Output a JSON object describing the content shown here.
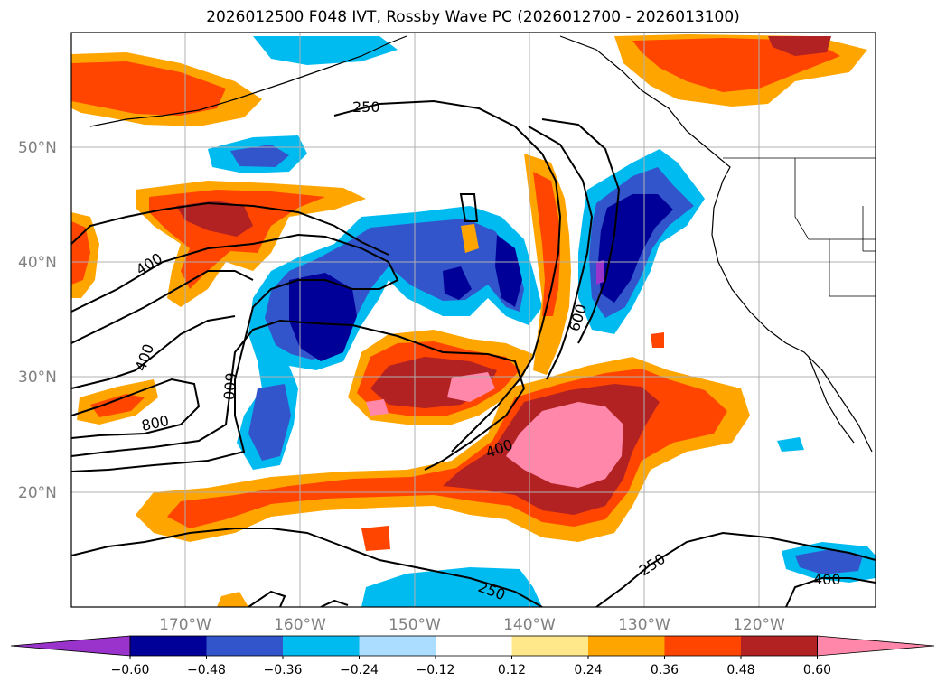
{
  "title": "2026012500 F048 IVT, Rossby Wave PC (2026012700 - 2026013100)",
  "map": {
    "lat_labels": [
      "50°N",
      "40°N",
      "30°N",
      "20°N"
    ],
    "lon_labels": [
      "170°W",
      "160°W",
      "150°W",
      "140°W",
      "130°W",
      "120°W"
    ],
    "grid": true,
    "contour_labels": [
      "250",
      "400",
      "400",
      "600",
      "800",
      "600",
      "400",
      "250",
      "250",
      "400"
    ]
  },
  "colorbar": {
    "ticks": [
      "−0.60",
      "−0.48",
      "−0.36",
      "−0.24",
      "−0.12",
      "0.12",
      "0.24",
      "0.36",
      "0.48",
      "0.60"
    ],
    "colors": [
      "#9933cc",
      "#000099",
      "#3355cc",
      "#00bbf0",
      "#aaddff",
      "#ffffff",
      "#ffe88a",
      "#ffa500",
      "#ff4500",
      "#b22222",
      "#ff88aa"
    ],
    "extend": "both"
  }
}
